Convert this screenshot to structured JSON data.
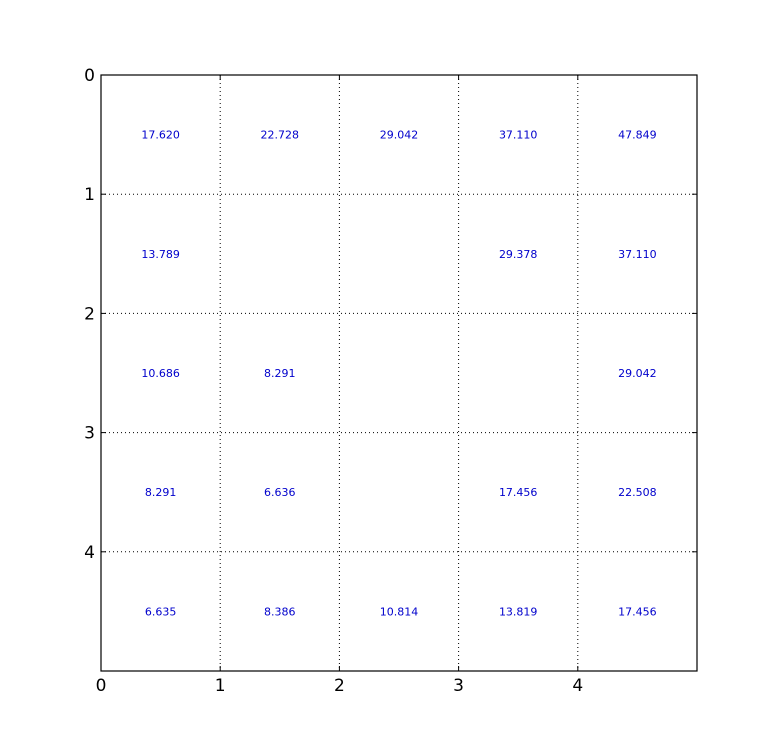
{
  "chart_data": {
    "type": "heatmap",
    "title": "",
    "xlabel": "",
    "ylabel": "",
    "xlim": [
      0,
      5
    ],
    "ylim": [
      0,
      5
    ],
    "y_inverted": true,
    "grid": true,
    "x_ticks": [
      "0",
      "1",
      "2",
      "3",
      "4"
    ],
    "y_ticks": [
      "0",
      "1",
      "2",
      "3",
      "4"
    ],
    "text_color": "#0000cc",
    "cells": [
      [
        "17.620",
        "22.728",
        "29.042",
        "37.110",
        "47.849"
      ],
      [
        "13.789",
        "",
        "",
        "29.378",
        "37.110"
      ],
      [
        "10.686",
        "8.291",
        "",
        "",
        "29.042"
      ],
      [
        "8.291",
        "6.636",
        "",
        "17.456",
        "22.508"
      ],
      [
        "6.635",
        "8.386",
        "10.814",
        "13.819",
        "17.456"
      ]
    ]
  }
}
